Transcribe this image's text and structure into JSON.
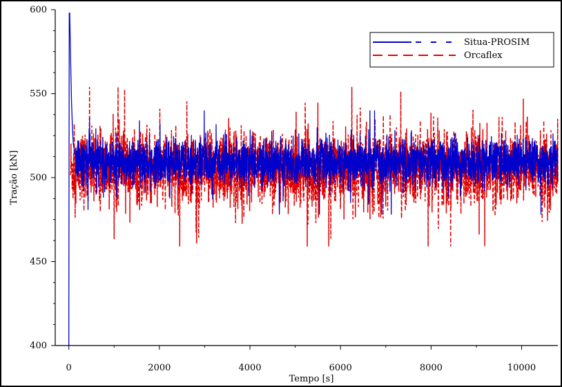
{
  "chart_data": {
    "type": "line",
    "title": "",
    "xlabel": "Tempo [s]",
    "ylabel": "Tração [kN]",
    "xlim": [
      -300,
      10800
    ],
    "ylim": [
      400,
      600
    ],
    "x_ticks": [
      0,
      2000,
      4000,
      6000,
      8000,
      10000
    ],
    "x_tick_labels": [
      "0",
      "2000",
      "4000",
      "6000",
      "8000",
      "10000"
    ],
    "y_ticks": [
      400,
      450,
      500,
      550,
      600
    ],
    "y_tick_labels": [
      "400",
      "450",
      "500",
      "550",
      "600"
    ],
    "grid": false,
    "legend_position": "top-right",
    "series": [
      {
        "name": "Situa-PROSIM",
        "color": "#0000cc",
        "style": "solid",
        "center": 509,
        "lower": 478,
        "upper": 540,
        "transient": {
          "x": [
            0,
            0,
            10,
            20,
            40,
            60,
            80,
            100,
            150
          ],
          "y": [
            400,
            415,
            598,
            598,
            570,
            545,
            530,
            520,
            512
          ]
        }
      },
      {
        "name": "Orcaflex",
        "color": "#e00000",
        "style": "dashed",
        "center": 505,
        "lower": 459,
        "upper": 554
      }
    ]
  }
}
